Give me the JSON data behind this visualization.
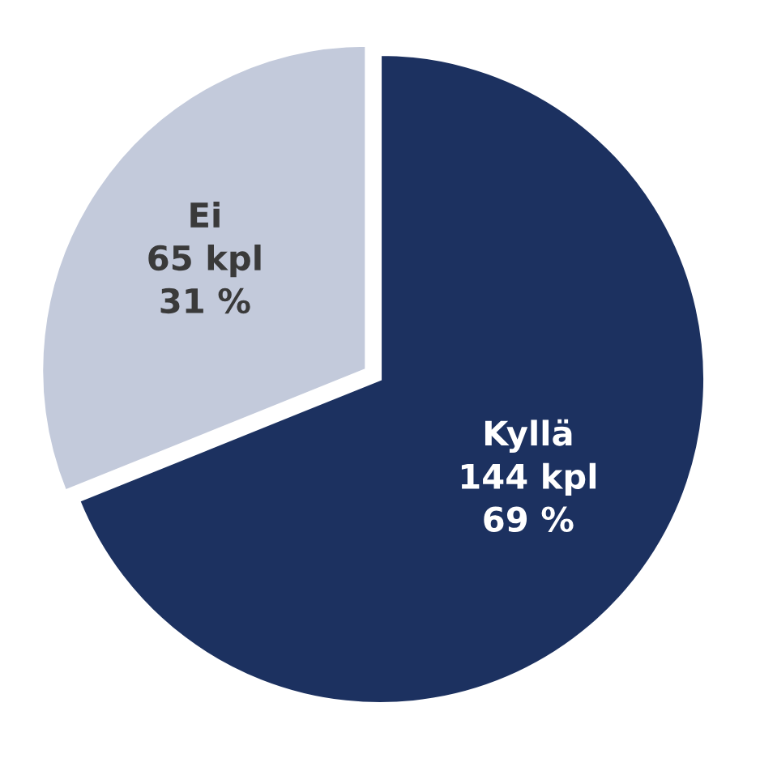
{
  "chart_data": {
    "type": "pie",
    "categories": [
      "Kyllä",
      "Ei"
    ],
    "values": [
      144,
      65
    ],
    "value_labels": [
      "144 kpl\n69 %",
      "65 kpl\n31 %"
    ],
    "colors": [
      "#1c3160",
      "#c3cadb"
    ]
  }
}
